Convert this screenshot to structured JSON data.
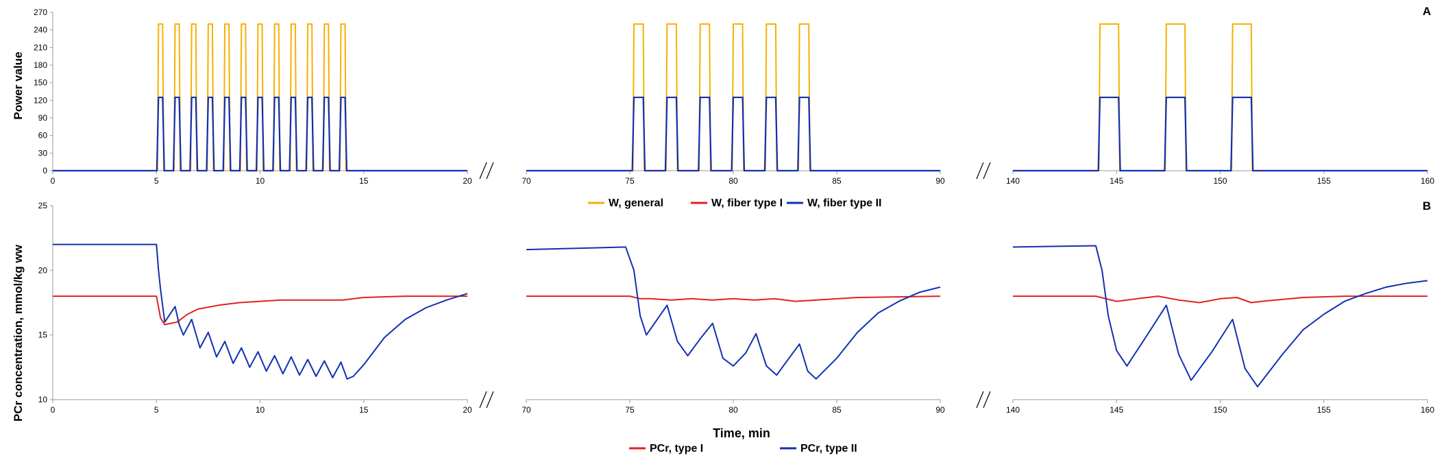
{
  "colors": {
    "w_general": "#f5b000",
    "w_type1": "#e02020",
    "w_type2": "#1030b0",
    "pcr_type1": "#e02020",
    "pcr_type2": "#1030b0",
    "axis": "#999999"
  },
  "chart_data": [
    {
      "panel_label": "A",
      "type": "line",
      "ylabel": "Power value",
      "ylim": [
        0,
        270
      ],
      "yticks": [
        "0",
        "30",
        "60",
        "90",
        "120",
        "150",
        "180",
        "210",
        "240",
        "270"
      ],
      "segments": [
        {
          "xlim": [
            0,
            20
          ],
          "xticks": [
            "0",
            "5",
            "10",
            "15",
            "20"
          ]
        },
        {
          "xlim": [
            70,
            90
          ],
          "xticks": [
            "70",
            "75",
            "80",
            "85",
            "90"
          ]
        },
        {
          "xlim": [
            140,
            160
          ],
          "xticks": [
            "140",
            "145",
            "150",
            "155",
            "160"
          ]
        }
      ],
      "pulses": {
        "general_value": 250,
        "type2_value": 125,
        "type1_value": 0,
        "segment1_starts": [
          5.1,
          5.9,
          6.7,
          7.5,
          8.3,
          9.1,
          9.9,
          10.7,
          11.5,
          12.3,
          13.1,
          13.9
        ],
        "segment1_duration": 0.2,
        "segment2_starts": [
          75.2,
          76.8,
          78.4,
          80.0,
          81.6,
          83.2
        ],
        "segment2_duration": 0.45,
        "segment3_starts": [
          144.2,
          147.4,
          150.6
        ],
        "segment3_duration": 0.9
      },
      "legend": [
        "W, general",
        "W, fiber type I",
        "W, fiber type II"
      ]
    },
    {
      "panel_label": "B",
      "type": "line",
      "ylabel": "PCr concentration, mmol/kg ww",
      "xlabel": "Time, min",
      "ylim": [
        10,
        25
      ],
      "yticks": [
        "10",
        "15",
        "20",
        "25"
      ],
      "segments": [
        {
          "xlim": [
            0,
            20
          ],
          "xticks": [
            "0",
            "5",
            "10",
            "15",
            "20"
          ]
        },
        {
          "xlim": [
            70,
            90
          ],
          "xticks": [
            "70",
            "75",
            "80",
            "85",
            "90"
          ]
        },
        {
          "xlim": [
            140,
            160
          ],
          "xticks": [
            "140",
            "145",
            "150",
            "155",
            "160"
          ]
        }
      ],
      "series": [
        {
          "name": "PCr, type I",
          "segment1": [
            [
              0,
              18
            ],
            [
              5,
              18
            ],
            [
              5.2,
              16.3
            ],
            [
              5.4,
              15.8
            ],
            [
              6,
              16
            ],
            [
              6.5,
              16.6
            ],
            [
              7,
              17
            ],
            [
              8,
              17.3
            ],
            [
              9,
              17.5
            ],
            [
              10,
              17.6
            ],
            [
              11,
              17.7
            ],
            [
              12,
              17.7
            ],
            [
              13,
              17.7
            ],
            [
              14,
              17.7
            ],
            [
              15,
              17.9
            ],
            [
              17,
              18
            ],
            [
              20,
              18
            ]
          ],
          "segment2": [
            [
              70,
              18
            ],
            [
              75,
              18
            ],
            [
              75.5,
              17.8
            ],
            [
              76,
              17.8
            ],
            [
              77,
              17.7
            ],
            [
              78,
              17.8
            ],
            [
              79,
              17.7
            ],
            [
              80,
              17.8
            ],
            [
              81,
              17.7
            ],
            [
              82,
              17.8
            ],
            [
              83,
              17.6
            ],
            [
              84,
              17.7
            ],
            [
              86,
              17.9
            ],
            [
              90,
              18
            ]
          ],
          "segment3": [
            [
              140,
              18
            ],
            [
              144,
              18
            ],
            [
              145,
              17.6
            ],
            [
              146,
              17.8
            ],
            [
              147,
              18
            ],
            [
              148,
              17.7
            ],
            [
              149,
              17.5
            ],
            [
              150,
              17.8
            ],
            [
              150.8,
              17.9
            ],
            [
              151.5,
              17.5
            ],
            [
              152,
              17.6
            ],
            [
              154,
              17.9
            ],
            [
              156,
              18
            ],
            [
              160,
              18
            ]
          ]
        },
        {
          "name": "PCr, type II",
          "segment1": [
            [
              0,
              22
            ],
            [
              5,
              22
            ],
            [
              5.1,
              20
            ],
            [
              5.2,
              18.5
            ],
            [
              5.4,
              16
            ],
            [
              5.9,
              17.2
            ],
            [
              6.1,
              15.8
            ],
            [
              6.3,
              15
            ],
            [
              6.7,
              16.2
            ],
            [
              7.1,
              14
            ],
            [
              7.5,
              15.2
            ],
            [
              7.9,
              13.3
            ],
            [
              8.3,
              14.5
            ],
            [
              8.7,
              12.8
            ],
            [
              9.1,
              14
            ],
            [
              9.5,
              12.5
            ],
            [
              9.9,
              13.7
            ],
            [
              10.3,
              12.2
            ],
            [
              10.7,
              13.4
            ],
            [
              11.1,
              12
            ],
            [
              11.5,
              13.3
            ],
            [
              11.9,
              11.9
            ],
            [
              12.3,
              13.1
            ],
            [
              12.7,
              11.8
            ],
            [
              13.1,
              13
            ],
            [
              13.5,
              11.7
            ],
            [
              13.9,
              12.9
            ],
            [
              14.2,
              11.6
            ],
            [
              14.5,
              11.8
            ],
            [
              15,
              12.7
            ],
            [
              16,
              14.8
            ],
            [
              17,
              16.2
            ],
            [
              18,
              17.1
            ],
            [
              19,
              17.7
            ],
            [
              20,
              18.2
            ]
          ],
          "segment2": [
            [
              70,
              21.6
            ],
            [
              74.8,
              21.8
            ],
            [
              75.2,
              20
            ],
            [
              75.5,
              16.5
            ],
            [
              75.8,
              15
            ],
            [
              76.8,
              17.3
            ],
            [
              77.3,
              14.5
            ],
            [
              77.8,
              13.4
            ],
            [
              78.4,
              14.7
            ],
            [
              79,
              15.9
            ],
            [
              79.5,
              13.2
            ],
            [
              80,
              12.6
            ],
            [
              80.6,
              13.6
            ],
            [
              81.1,
              15.1
            ],
            [
              81.6,
              12.6
            ],
            [
              82.1,
              11.9
            ],
            [
              82.6,
              13
            ],
            [
              83.2,
              14.3
            ],
            [
              83.6,
              12.2
            ],
            [
              84,
              11.6
            ],
            [
              85,
              13.2
            ],
            [
              86,
              15.2
            ],
            [
              87,
              16.7
            ],
            [
              88,
              17.6
            ],
            [
              89,
              18.3
            ],
            [
              90,
              18.7
            ]
          ],
          "segment3": [
            [
              140,
              21.8
            ],
            [
              144,
              21.9
            ],
            [
              144.3,
              20
            ],
            [
              144.6,
              16.5
            ],
            [
              145,
              13.8
            ],
            [
              145.5,
              12.6
            ],
            [
              146.4,
              14.8
            ],
            [
              147.4,
              17.3
            ],
            [
              148,
              13.5
            ],
            [
              148.6,
              11.5
            ],
            [
              149.6,
              13.7
            ],
            [
              150.6,
              16.2
            ],
            [
              151.2,
              12.4
            ],
            [
              151.8,
              11
            ],
            [
              153,
              13.5
            ],
            [
              154,
              15.4
            ],
            [
              155,
              16.6
            ],
            [
              156,
              17.6
            ],
            [
              157,
              18.2
            ],
            [
              158,
              18.7
            ],
            [
              159,
              19
            ],
            [
              160,
              19.2
            ]
          ]
        }
      ],
      "legend": [
        "PCr, type I",
        "PCr, type II"
      ]
    }
  ]
}
